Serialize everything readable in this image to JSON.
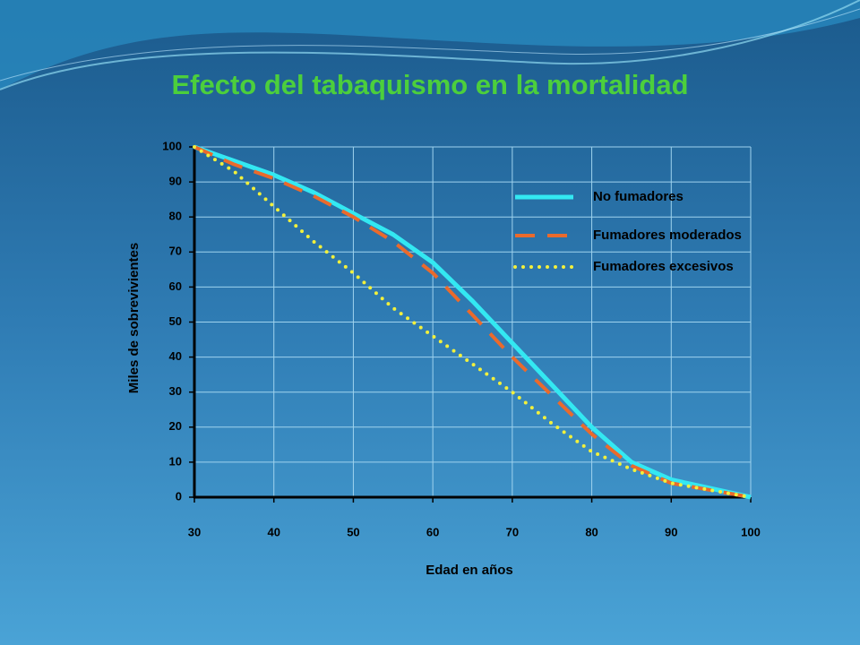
{
  "chart_data": {
    "type": "line",
    "title": "Efecto del tabaquismo en la mortalidad",
    "xlabel": "Edad en años",
    "ylabel": "Miles de sobrevivientes",
    "x": [
      30,
      35,
      40,
      45,
      50,
      55,
      60,
      65,
      70,
      75,
      80,
      85,
      90,
      95,
      100
    ],
    "series": [
      {
        "name": "No fumadores",
        "color": "#33e8f2",
        "style": "solid",
        "values": [
          100,
          96,
          92,
          87,
          81,
          75,
          67,
          56,
          44,
          32,
          20,
          10,
          5,
          2.5,
          0
        ]
      },
      {
        "name": "Fumadores moderados",
        "color": "#ea6a2c",
        "style": "dashed",
        "values": [
          100,
          95,
          91,
          86,
          80,
          73,
          64,
          52,
          40,
          29,
          18,
          9,
          4,
          2,
          0
        ]
      },
      {
        "name": "Fumadores excesivos",
        "color": "#f2f03c",
        "style": "dotted",
        "values": [
          100,
          93,
          83,
          73,
          64,
          54,
          46,
          38,
          30,
          21,
          13,
          8,
          4,
          2,
          0
        ]
      }
    ],
    "xlim": [
      30,
      100
    ],
    "xticks": [
      30,
      40,
      50,
      60,
      70,
      80,
      90,
      100
    ],
    "ylim": [
      0,
      100
    ],
    "yticks": [
      0,
      10,
      20,
      30,
      40,
      50,
      60,
      70,
      80,
      90,
      100
    ],
    "grid": true
  }
}
